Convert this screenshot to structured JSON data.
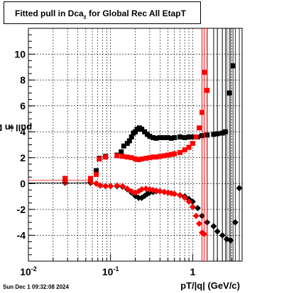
{
  "title": {
    "prefix": "Fitted pull in Dca",
    "sub": "z",
    "suffix": " for Global Rec All EtapT"
  },
  "ylabel": {
    "prefix": "pull in Dca",
    "sub": "z"
  },
  "xlabel": "pT/|q| (GeV/c)",
  "datestamp": "Sun Dec  1 09:32:08 2024",
  "colors": {
    "black": "#000000",
    "red": "#ff0000",
    "grid": "#000000"
  },
  "chart_data": {
    "type": "scatter",
    "xscale": "log",
    "xlim": [
      0.01,
      4.0
    ],
    "ylim": [
      -6,
      12
    ],
    "grid": true,
    "xticks": [
      {
        "value": 0.01,
        "base": "10",
        "exp": "-2"
      },
      {
        "value": 0.1,
        "base": "10",
        "exp": "-1"
      },
      {
        "value": 1,
        "base": "1",
        "exp": ""
      }
    ],
    "yticks": [
      -4,
      -2,
      0,
      2,
      4,
      6,
      8,
      10
    ],
    "series": [
      {
        "color": "black",
        "marker": "square",
        "points": [
          [
            0.028,
            0.35
          ],
          [
            0.057,
            0.35
          ],
          [
            0.067,
            1.0
          ],
          [
            0.073,
            1.95
          ],
          [
            0.087,
            2.1
          ],
          [
            0.12,
            2.2
          ],
          [
            0.135,
            2.45
          ],
          [
            0.145,
            2.9
          ],
          [
            0.16,
            3.1
          ],
          [
            0.17,
            3.3
          ],
          [
            0.18,
            3.6
          ],
          [
            0.19,
            3.9
          ],
          [
            0.2,
            4.0
          ],
          [
            0.21,
            4.2
          ],
          [
            0.225,
            4.3
          ],
          [
            0.24,
            4.2
          ],
          [
            0.26,
            4.0
          ],
          [
            0.28,
            3.8
          ],
          [
            0.3,
            3.65
          ],
          [
            0.33,
            3.55
          ],
          [
            0.36,
            3.5
          ],
          [
            0.4,
            3.55
          ],
          [
            0.45,
            3.55
          ],
          [
            0.5,
            3.55
          ],
          [
            0.55,
            3.5
          ],
          [
            0.6,
            3.55
          ],
          [
            0.7,
            3.6
          ],
          [
            0.8,
            3.55
          ],
          [
            0.9,
            3.6
          ],
          [
            1.0,
            3.6
          ],
          [
            1.15,
            3.6
          ],
          [
            1.3,
            3.7
          ],
          [
            1.5,
            3.75
          ],
          [
            1.8,
            3.8
          ],
          [
            2.0,
            3.85
          ],
          [
            2.3,
            3.9
          ],
          [
            2.5,
            4.0
          ],
          [
            2.8,
            7.0
          ],
          [
            3.1,
            9.1
          ]
        ]
      },
      {
        "color": "black",
        "marker": "diamond",
        "points": [
          [
            0.028,
            0.05
          ],
          [
            0.057,
            0.05
          ],
          [
            0.067,
            0.0
          ],
          [
            0.075,
            -0.15
          ],
          [
            0.087,
            -0.2
          ],
          [
            0.1,
            -0.2
          ],
          [
            0.12,
            -0.2
          ],
          [
            0.14,
            -0.25
          ],
          [
            0.16,
            -0.45
          ],
          [
            0.18,
            -0.7
          ],
          [
            0.2,
            -0.95
          ],
          [
            0.22,
            -1.1
          ],
          [
            0.24,
            -1.1
          ],
          [
            0.26,
            -0.95
          ],
          [
            0.28,
            -0.8
          ],
          [
            0.3,
            -0.7
          ],
          [
            0.33,
            -0.65
          ],
          [
            0.36,
            -0.6
          ],
          [
            0.4,
            -0.6
          ],
          [
            0.45,
            -0.65
          ],
          [
            0.5,
            -0.7
          ],
          [
            0.55,
            -0.75
          ],
          [
            0.6,
            -0.8
          ],
          [
            0.7,
            -0.9
          ],
          [
            0.8,
            -1.0
          ],
          [
            0.9,
            -1.2
          ],
          [
            1.0,
            -1.4
          ],
          [
            1.15,
            -1.9
          ],
          [
            1.3,
            -2.5
          ],
          [
            1.5,
            -3.0
          ],
          [
            1.8,
            -3.3
          ],
          [
            2.0,
            -3.7
          ],
          [
            2.3,
            -4.0
          ],
          [
            2.6,
            -4.3
          ],
          [
            2.9,
            -4.4
          ],
          [
            3.3,
            -3.0
          ],
          [
            3.7,
            -0.35
          ]
        ]
      },
      {
        "color": "red",
        "marker": "square",
        "points": [
          [
            0.028,
            0.4
          ],
          [
            0.057,
            0.4
          ],
          [
            0.067,
            0.7
          ],
          [
            0.073,
            1.9
          ],
          [
            0.087,
            2.05
          ],
          [
            0.12,
            2.15
          ],
          [
            0.14,
            2.1
          ],
          [
            0.16,
            2.05
          ],
          [
            0.18,
            2.0
          ],
          [
            0.2,
            1.9
          ],
          [
            0.22,
            1.85
          ],
          [
            0.24,
            1.9
          ],
          [
            0.27,
            1.95
          ],
          [
            0.3,
            2.0
          ],
          [
            0.33,
            2.05
          ],
          [
            0.36,
            2.05
          ],
          [
            0.4,
            2.1
          ],
          [
            0.45,
            2.15
          ],
          [
            0.5,
            2.2
          ],
          [
            0.55,
            2.25
          ],
          [
            0.6,
            2.3
          ],
          [
            0.7,
            2.4
          ],
          [
            0.8,
            2.6
          ],
          [
            0.9,
            2.8
          ],
          [
            1.0,
            3.1
          ],
          [
            1.1,
            3.6
          ],
          [
            1.2,
            4.3
          ],
          [
            1.3,
            5.5
          ],
          [
            1.38,
            8.6
          ],
          [
            1.5,
            7.2
          ]
        ]
      },
      {
        "color": "red",
        "marker": "diamond",
        "points": [
          [
            0.028,
            0.1
          ],
          [
            0.057,
            0.1
          ],
          [
            0.067,
            0.0
          ],
          [
            0.075,
            -0.15
          ],
          [
            0.087,
            -0.2
          ],
          [
            0.1,
            -0.2
          ],
          [
            0.12,
            -0.15
          ],
          [
            0.14,
            -0.2
          ],
          [
            0.16,
            -0.4
          ],
          [
            0.18,
            -0.6
          ],
          [
            0.2,
            -0.7
          ],
          [
            0.22,
            -0.6
          ],
          [
            0.24,
            -0.45
          ],
          [
            0.27,
            -0.4
          ],
          [
            0.3,
            -0.45
          ],
          [
            0.33,
            -0.5
          ],
          [
            0.36,
            -0.55
          ],
          [
            0.4,
            -0.6
          ],
          [
            0.45,
            -0.65
          ],
          [
            0.5,
            -0.7
          ],
          [
            0.55,
            -0.75
          ],
          [
            0.6,
            -0.8
          ],
          [
            0.7,
            -0.9
          ],
          [
            0.8,
            -1.1
          ],
          [
            0.9,
            -1.4
          ],
          [
            1.0,
            -1.8
          ],
          [
            1.1,
            -2.5
          ],
          [
            1.2,
            -3.1
          ],
          [
            1.3,
            -3.8
          ],
          [
            1.38,
            -3.9
          ]
        ]
      }
    ]
  }
}
